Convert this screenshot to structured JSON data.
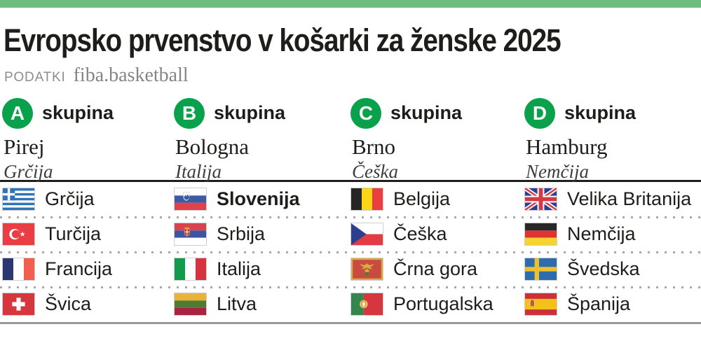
{
  "colors": {
    "topbar_green": "#6cbd80",
    "badge_green": "#0aa14c"
  },
  "header": {
    "title": "Evropsko prvenstvo v košarki za ženske 2025",
    "source_label": "PODATKI",
    "source_value": "fiba.basketball"
  },
  "groups": [
    {
      "letter": "A",
      "group_word": "skupina",
      "city": "Pirej",
      "country": "Grčija",
      "teams": [
        {
          "name": "Grčija",
          "flag": "greece",
          "bold": false
        },
        {
          "name": "Turčija",
          "flag": "turkey",
          "bold": false
        },
        {
          "name": "Francija",
          "flag": "france",
          "bold": false
        },
        {
          "name": "Švica",
          "flag": "switzerland",
          "bold": false
        }
      ]
    },
    {
      "letter": "B",
      "group_word": "skupina",
      "city": "Bologna",
      "country": "Italija",
      "teams": [
        {
          "name": "Slovenija",
          "flag": "slovenia",
          "bold": true
        },
        {
          "name": "Srbija",
          "flag": "serbia",
          "bold": false
        },
        {
          "name": "Italija",
          "flag": "italy",
          "bold": false
        },
        {
          "name": "Litva",
          "flag": "lithuania",
          "bold": false
        }
      ]
    },
    {
      "letter": "C",
      "group_word": "skupina",
      "city": "Brno",
      "country": "Češka",
      "teams": [
        {
          "name": "Belgija",
          "flag": "belgium",
          "bold": false
        },
        {
          "name": "Češka",
          "flag": "czechia",
          "bold": false
        },
        {
          "name": "Črna gora",
          "flag": "montenegro",
          "bold": false
        },
        {
          "name": "Portugalska",
          "flag": "portugal",
          "bold": false
        }
      ]
    },
    {
      "letter": "D",
      "group_word": "skupina",
      "city": "Hamburg",
      "country": "Nemčija",
      "teams": [
        {
          "name": "Velika Britanija",
          "flag": "uk",
          "bold": false
        },
        {
          "name": "Nemčija",
          "flag": "germany",
          "bold": false
        },
        {
          "name": "Švedska",
          "flag": "sweden",
          "bold": false
        },
        {
          "name": "Španija",
          "flag": "spain",
          "bold": false
        }
      ]
    }
  ],
  "chart_data": {
    "type": "table",
    "title": "Evropsko prvenstvo v košarki za ženske 2025",
    "source": "fiba.basketball",
    "groups": [
      {
        "group": "A",
        "host_city": "Pirej",
        "host_country": "Grčija",
        "teams": [
          "Grčija",
          "Turčija",
          "Francija",
          "Švica"
        ]
      },
      {
        "group": "B",
        "host_city": "Bologna",
        "host_country": "Italija",
        "teams": [
          "Slovenija",
          "Srbija",
          "Italija",
          "Litva"
        ]
      },
      {
        "group": "C",
        "host_city": "Brno",
        "host_country": "Češka",
        "teams": [
          "Belgija",
          "Češka",
          "Črna gora",
          "Portugalska"
        ]
      },
      {
        "group": "D",
        "host_city": "Hamburg",
        "host_country": "Nemčija",
        "teams": [
          "Velika Britanija",
          "Nemčija",
          "Švedska",
          "Španija"
        ]
      }
    ],
    "highlighted_team": "Slovenija"
  }
}
